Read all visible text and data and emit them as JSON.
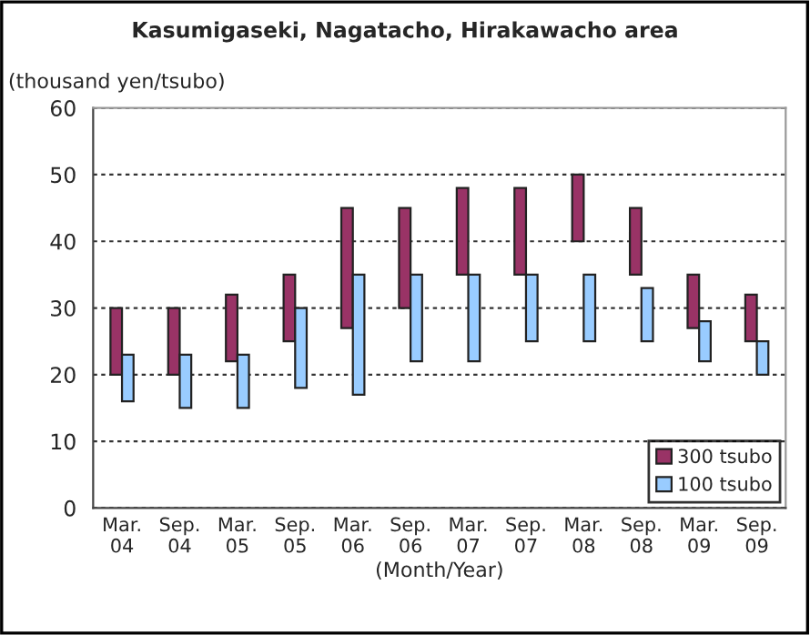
{
  "chart_data": {
    "type": "bar",
    "title": "Kasumigaseki, Nagatacho, Hirakawacho area",
    "ylabel": "(thousand yen/tsubo)",
    "xlabel": "(Month/Year)",
    "categories": [
      "Mar.\n04",
      "Sep.\n04",
      "Mar.\n05",
      "Sep.\n05",
      "Mar.\n06",
      "Sep.\n06",
      "Mar.\n07",
      "Sep.\n07",
      "Mar.\n08",
      "Sep.\n08",
      "Mar.\n09",
      "Sep.\n09"
    ],
    "series": [
      {
        "name": "300 tsubo",
        "color": "#993366",
        "base": [
          20,
          20,
          22,
          25,
          27,
          30,
          35,
          35,
          40,
          35,
          27,
          25
        ],
        "values": [
          10,
          10,
          10,
          10,
          18,
          15,
          13,
          13,
          10,
          10,
          8,
          7
        ]
      },
      {
        "name": "100 tsubo",
        "color": "#99ccff",
        "base": [
          16,
          15,
          15,
          18,
          17,
          22,
          22,
          25,
          25,
          25,
          22,
          20
        ],
        "values": [
          7,
          8,
          8,
          12,
          18,
          13,
          13,
          10,
          10,
          8,
          6,
          5
        ]
      }
    ],
    "ylim": [
      0,
      60
    ],
    "yticks": [
      0,
      10,
      20,
      30,
      40,
      50,
      60
    ],
    "grid": "y",
    "legend": "bottom right"
  }
}
